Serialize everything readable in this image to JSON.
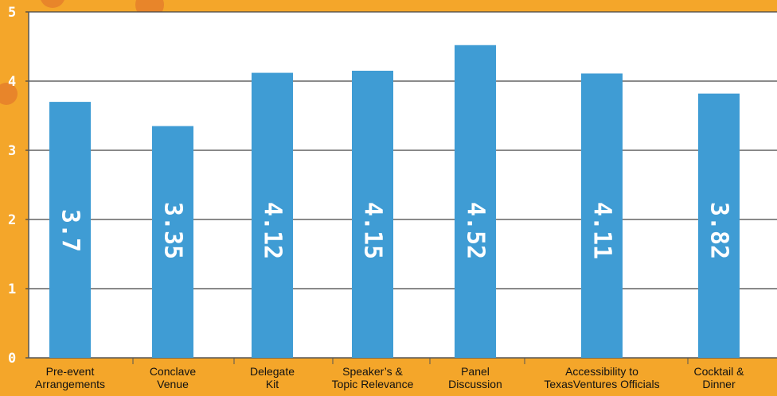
{
  "chart_data": {
    "type": "bar",
    "categories": [
      [
        "Pre-event",
        "Arrangements"
      ],
      [
        "Conclave",
        "Venue"
      ],
      [
        "Delegate",
        "Kit"
      ],
      [
        "Speaker’s &",
        "Topic Relevance"
      ],
      [
        "Panel",
        "Discussion"
      ],
      [
        "Accessibility to",
        "TexasVentures Officials"
      ],
      [
        "Cocktail &",
        "Dinner"
      ]
    ],
    "values": [
      3.7,
      3.35,
      4.12,
      4.15,
      4.52,
      4.11,
      3.82
    ],
    "data_labels": [
      "3.7",
      "3.35",
      "4.12",
      "4.15",
      "4.52",
      "4.11",
      "3.82"
    ],
    "title": "",
    "xlabel": "",
    "ylabel": "",
    "ylim": [
      0,
      5
    ],
    "yticks": [
      "0",
      "1",
      "2",
      "3",
      "4",
      "5"
    ],
    "grid": true,
    "legend": "none"
  },
  "colors": {
    "background": "#f4a62a",
    "plot_area": "#ffffff",
    "bar": "#3f9cd4",
    "axis": "#555555",
    "decor_circle": "#e8852a"
  }
}
